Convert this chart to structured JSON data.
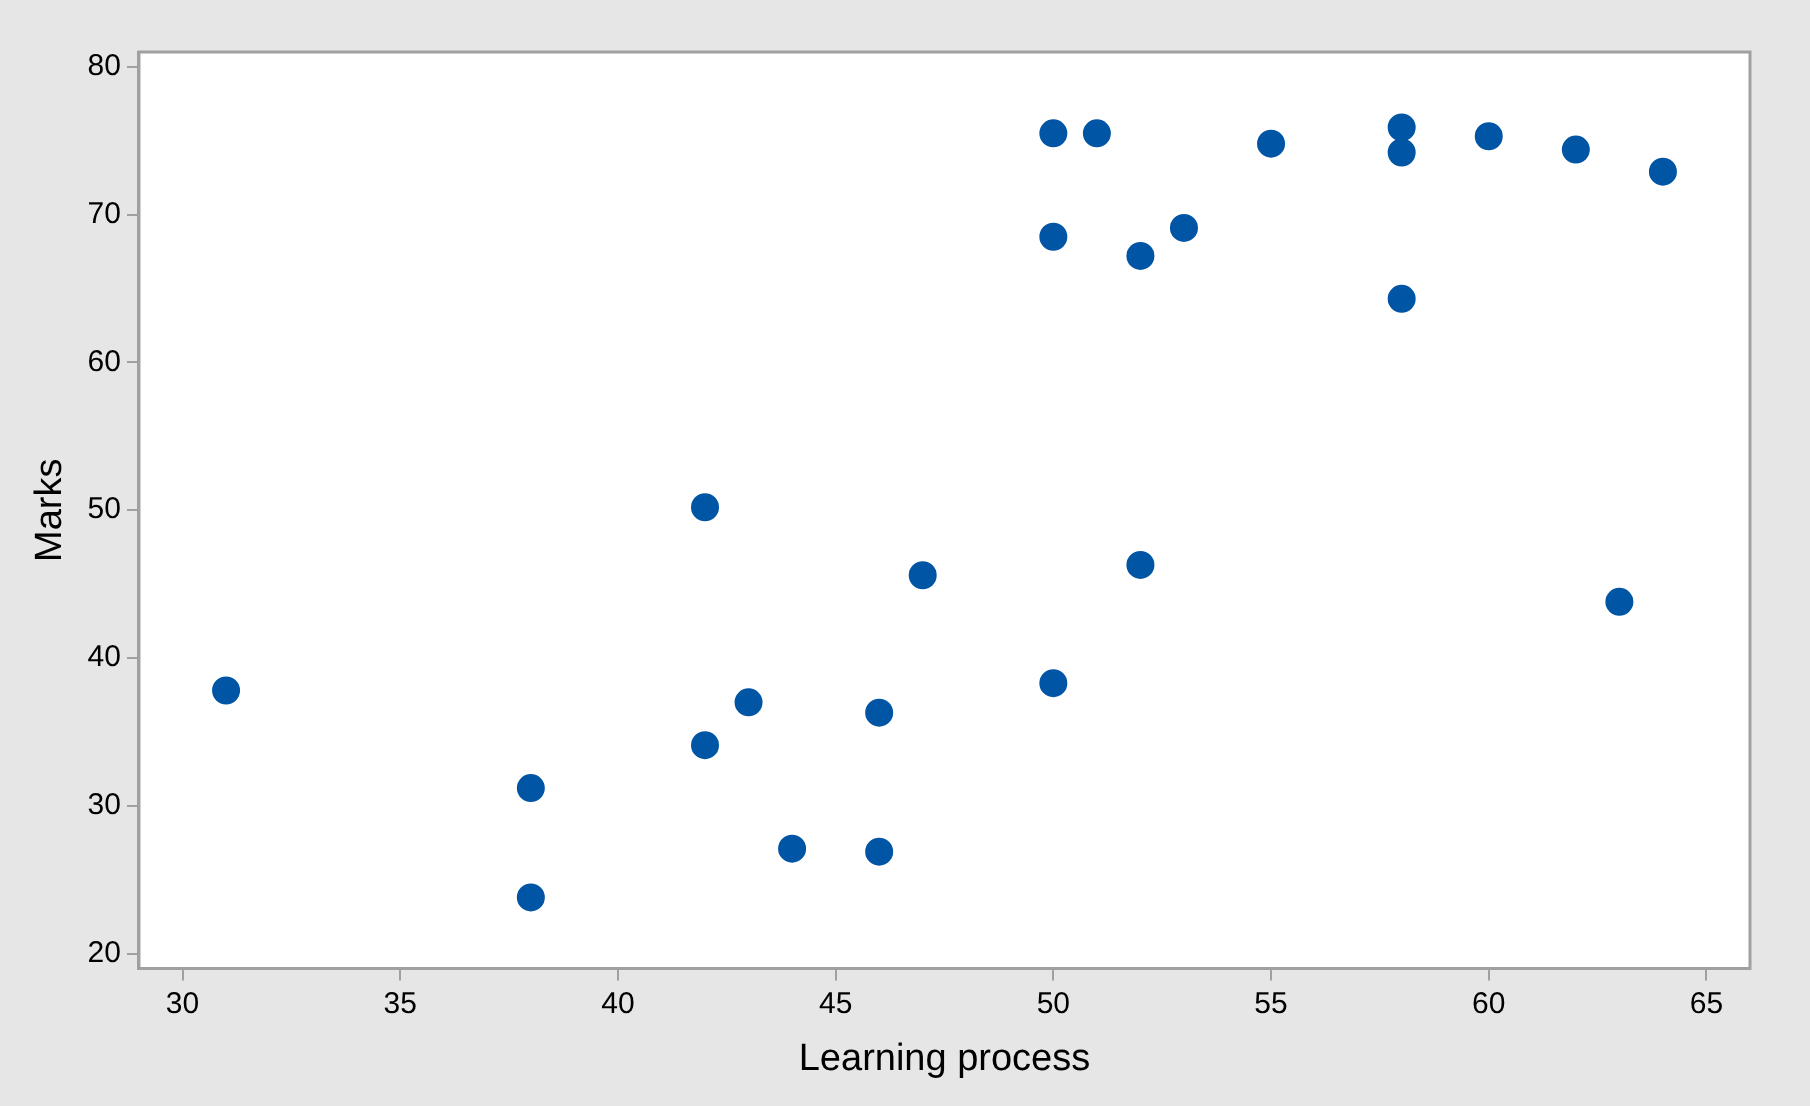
{
  "chart_data": {
    "type": "scatter",
    "xlabel": "Learning process",
    "ylabel": "Marks",
    "x": [
      31,
      38,
      38,
      42,
      42,
      43,
      44,
      46,
      46,
      47,
      50,
      50,
      50,
      51,
      52,
      52,
      53,
      55,
      58,
      58,
      58,
      60,
      62,
      63,
      64
    ],
    "values": [
      37.8,
      31.2,
      23.8,
      50.2,
      34.1,
      37,
      27.1,
      36.3,
      26.9,
      45.6,
      38.3,
      75.5,
      68.5,
      75.5,
      67.2,
      46.3,
      69.1,
      74.8,
      75.9,
      74.2,
      64.3,
      75.3,
      74.4,
      43.8,
      72.9
    ],
    "color": "#0055a5",
    "marker": "circle",
    "xlim": [
      29,
      66
    ],
    "xticks": [
      30,
      35,
      40,
      45,
      50,
      55,
      60,
      65
    ],
    "ylim": [
      19,
      81
    ],
    "yticks": [
      20,
      30,
      40,
      50,
      60,
      70,
      80
    ],
    "grid": false,
    "legend": false
  }
}
